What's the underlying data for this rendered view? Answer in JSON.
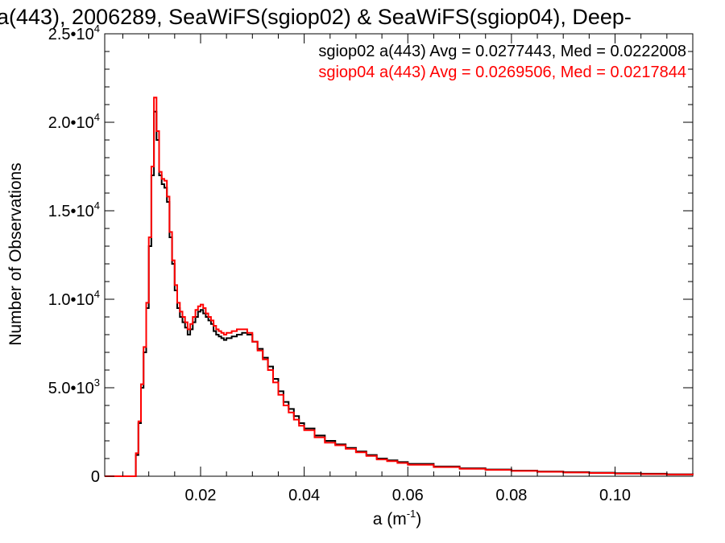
{
  "chart_data": {
    "type": "line",
    "title": "a(443), 2006289, SeaWiFS(sgiop02) & SeaWiFS(sgiop04), Deep-",
    "xlabel": "a (m",
    "xlabel_sup": "-1",
    "xlabel_suffix": ")",
    "ylabel": "Number of Observations",
    "xlim": [
      0.0015,
      0.115
    ],
    "ylim": [
      0,
      25000
    ],
    "x_ticks": [
      {
        "value": 0.02,
        "label": "0.02"
      },
      {
        "value": 0.04,
        "label": "0.04"
      },
      {
        "value": 0.06,
        "label": "0.06"
      },
      {
        "value": 0.08,
        "label": "0.08"
      },
      {
        "value": 0.1,
        "label": "0.10"
      }
    ],
    "y_ticks": [
      {
        "value": 0,
        "label": "0",
        "sup": ""
      },
      {
        "value": 5000,
        "label": "5.0•10",
        "sup": "3"
      },
      {
        "value": 10000,
        "label": "1.0•10",
        "sup": "4"
      },
      {
        "value": 15000,
        "label": "1.5•10",
        "sup": "4"
      },
      {
        "value": 20000,
        "label": "2.0•10",
        "sup": "4"
      },
      {
        "value": 25000,
        "label": "2.5•10",
        "sup": "4"
      }
    ],
    "step_style": "histogram",
    "legend": [
      {
        "text": "sgiop02 a(443) Avg = 0.0277443, Med = 0.0222008",
        "color": "#000000"
      },
      {
        "text": "sgiop04 a(443) Avg = 0.0269506, Med = 0.0217844",
        "color": "#ff0000"
      }
    ],
    "series": [
      {
        "color": "#000000",
        "x": [
          0.0015,
          0.006,
          0.0075,
          0.008,
          0.0085,
          0.009,
          0.0095,
          0.01,
          0.0105,
          0.011,
          0.0115,
          0.012,
          0.0125,
          0.013,
          0.0135,
          0.014,
          0.0145,
          0.015,
          0.0155,
          0.016,
          0.0165,
          0.017,
          0.0175,
          0.018,
          0.0185,
          0.019,
          0.0195,
          0.02,
          0.0205,
          0.021,
          0.0215,
          0.022,
          0.0225,
          0.023,
          0.0235,
          0.024,
          0.0245,
          0.025,
          0.026,
          0.027,
          0.028,
          0.029,
          0.03,
          0.031,
          0.032,
          0.033,
          0.034,
          0.035,
          0.036,
          0.037,
          0.038,
          0.039,
          0.04,
          0.042,
          0.044,
          0.046,
          0.048,
          0.05,
          0.052,
          0.054,
          0.056,
          0.058,
          0.06,
          0.065,
          0.07,
          0.075,
          0.08,
          0.085,
          0.09,
          0.095,
          0.1,
          0.105,
          0.11,
          0.115
        ],
        "y": [
          0,
          0,
          1200,
          3000,
          5000,
          7000,
          9500,
          13000,
          17000,
          20600,
          19000,
          17000,
          16500,
          16300,
          15500,
          13500,
          12000,
          10500,
          9500,
          9000,
          8700,
          8400,
          8000,
          8300,
          8700,
          9000,
          9300,
          9400,
          9200,
          9000,
          8800,
          8600,
          8200,
          8000,
          7900,
          7800,
          7700,
          7800,
          7900,
          8000,
          8100,
          8000,
          7600,
          7200,
          6700,
          6200,
          5500,
          4800,
          4200,
          3800,
          3400,
          3000,
          2700,
          2300,
          2000,
          1800,
          1600,
          1400,
          1200,
          1000,
          900,
          800,
          700,
          550,
          450,
          380,
          320,
          270,
          230,
          200,
          170,
          140,
          110,
          80
        ]
      },
      {
        "color": "#ff0000",
        "x": [
          0.0015,
          0.006,
          0.0075,
          0.008,
          0.0085,
          0.009,
          0.0095,
          0.01,
          0.0105,
          0.011,
          0.0115,
          0.012,
          0.0125,
          0.013,
          0.0135,
          0.014,
          0.0145,
          0.015,
          0.0155,
          0.016,
          0.0165,
          0.017,
          0.0175,
          0.018,
          0.0185,
          0.019,
          0.0195,
          0.02,
          0.0205,
          0.021,
          0.0215,
          0.022,
          0.0225,
          0.023,
          0.0235,
          0.024,
          0.0245,
          0.025,
          0.026,
          0.027,
          0.028,
          0.029,
          0.03,
          0.031,
          0.032,
          0.033,
          0.034,
          0.035,
          0.036,
          0.037,
          0.038,
          0.039,
          0.04,
          0.042,
          0.044,
          0.046,
          0.048,
          0.05,
          0.052,
          0.054,
          0.056,
          0.058,
          0.06,
          0.065,
          0.07,
          0.075,
          0.08,
          0.085,
          0.09,
          0.095,
          0.1,
          0.105,
          0.11,
          0.115
        ],
        "y": [
          0,
          0,
          1300,
          3100,
          5200,
          7300,
          9800,
          13500,
          17500,
          21400,
          19500,
          17200,
          16800,
          16700,
          15800,
          13800,
          12200,
          10800,
          9800,
          9300,
          9000,
          8700,
          8300,
          8600,
          9000,
          9400,
          9600,
          9700,
          9500,
          9200,
          9000,
          8800,
          8500,
          8300,
          8200,
          8100,
          8000,
          8100,
          8200,
          8300,
          8300,
          8100,
          7600,
          7100,
          6600,
          6000,
          5300,
          4600,
          4000,
          3600,
          3200,
          2850,
          2600,
          2200,
          1900,
          1750,
          1550,
          1350,
          1150,
          950,
          850,
          750,
          650,
          520,
          420,
          360,
          300,
          250,
          210,
          180,
          150,
          120,
          95,
          70
        ]
      }
    ]
  }
}
